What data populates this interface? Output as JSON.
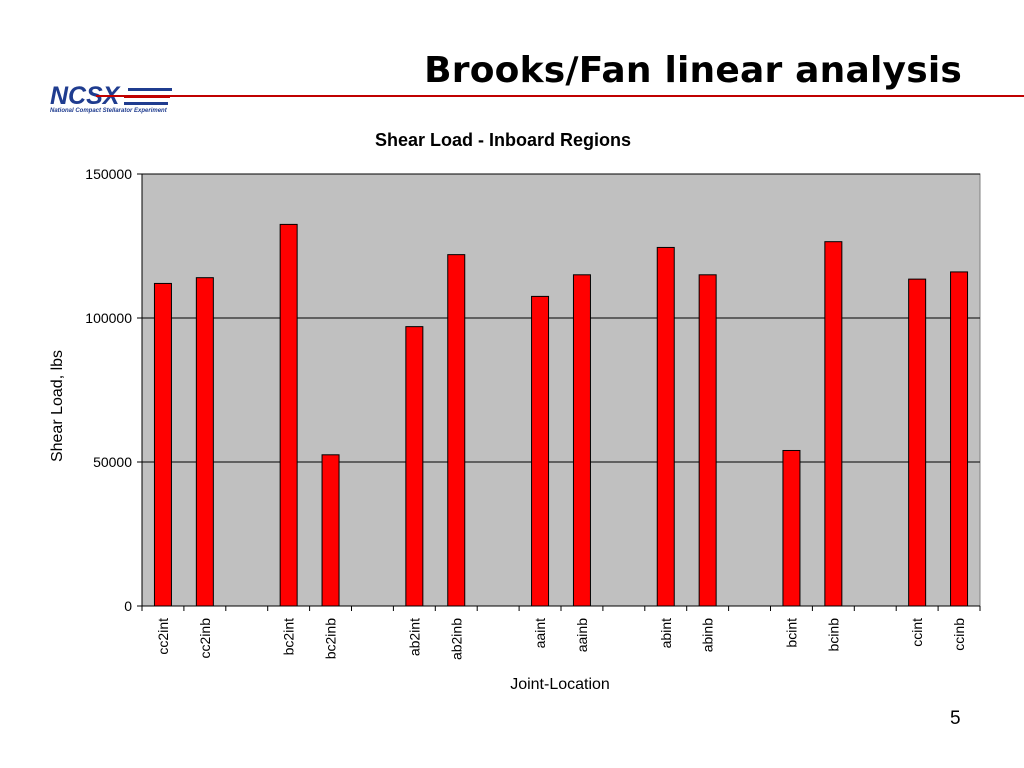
{
  "slide": {
    "title": "Brooks/Fan linear analysis",
    "logo_text": "NCSX",
    "logo_subtitle": "National Compact Stellarator Experiment",
    "page_number": "5"
  },
  "colors": {
    "bar_fill": "#ff0000",
    "bar_stroke": "#000000",
    "plot_background": "#c0c0c0",
    "rule": "#c00000",
    "logo_blue": "#1f3c8f"
  },
  "chart_data": {
    "type": "bar",
    "title": "Shear Load - Inboard Regions",
    "xlabel": "Joint-Location",
    "ylabel": "Shear Load, lbs",
    "ylim": [
      0,
      150000
    ],
    "yticks": [
      0,
      50000,
      100000,
      150000
    ],
    "ytick_labels": [
      "0",
      "50000",
      "100000",
      "150000"
    ],
    "grid": true,
    "legend": "none",
    "categories": [
      "cc2int",
      "cc2inb",
      "",
      "bc2int",
      "bc2inb",
      "",
      "ab2int",
      "ab2inb",
      "",
      "aaint",
      "aainb",
      "",
      "abint",
      "abinb",
      "",
      "bcint",
      "bcinb",
      "",
      "ccint",
      "ccinb"
    ],
    "values": [
      112000,
      114000,
      null,
      132500,
      52500,
      null,
      97000,
      122000,
      null,
      107500,
      115000,
      null,
      124500,
      115000,
      null,
      54000,
      126500,
      null,
      113500,
      116000
    ]
  }
}
